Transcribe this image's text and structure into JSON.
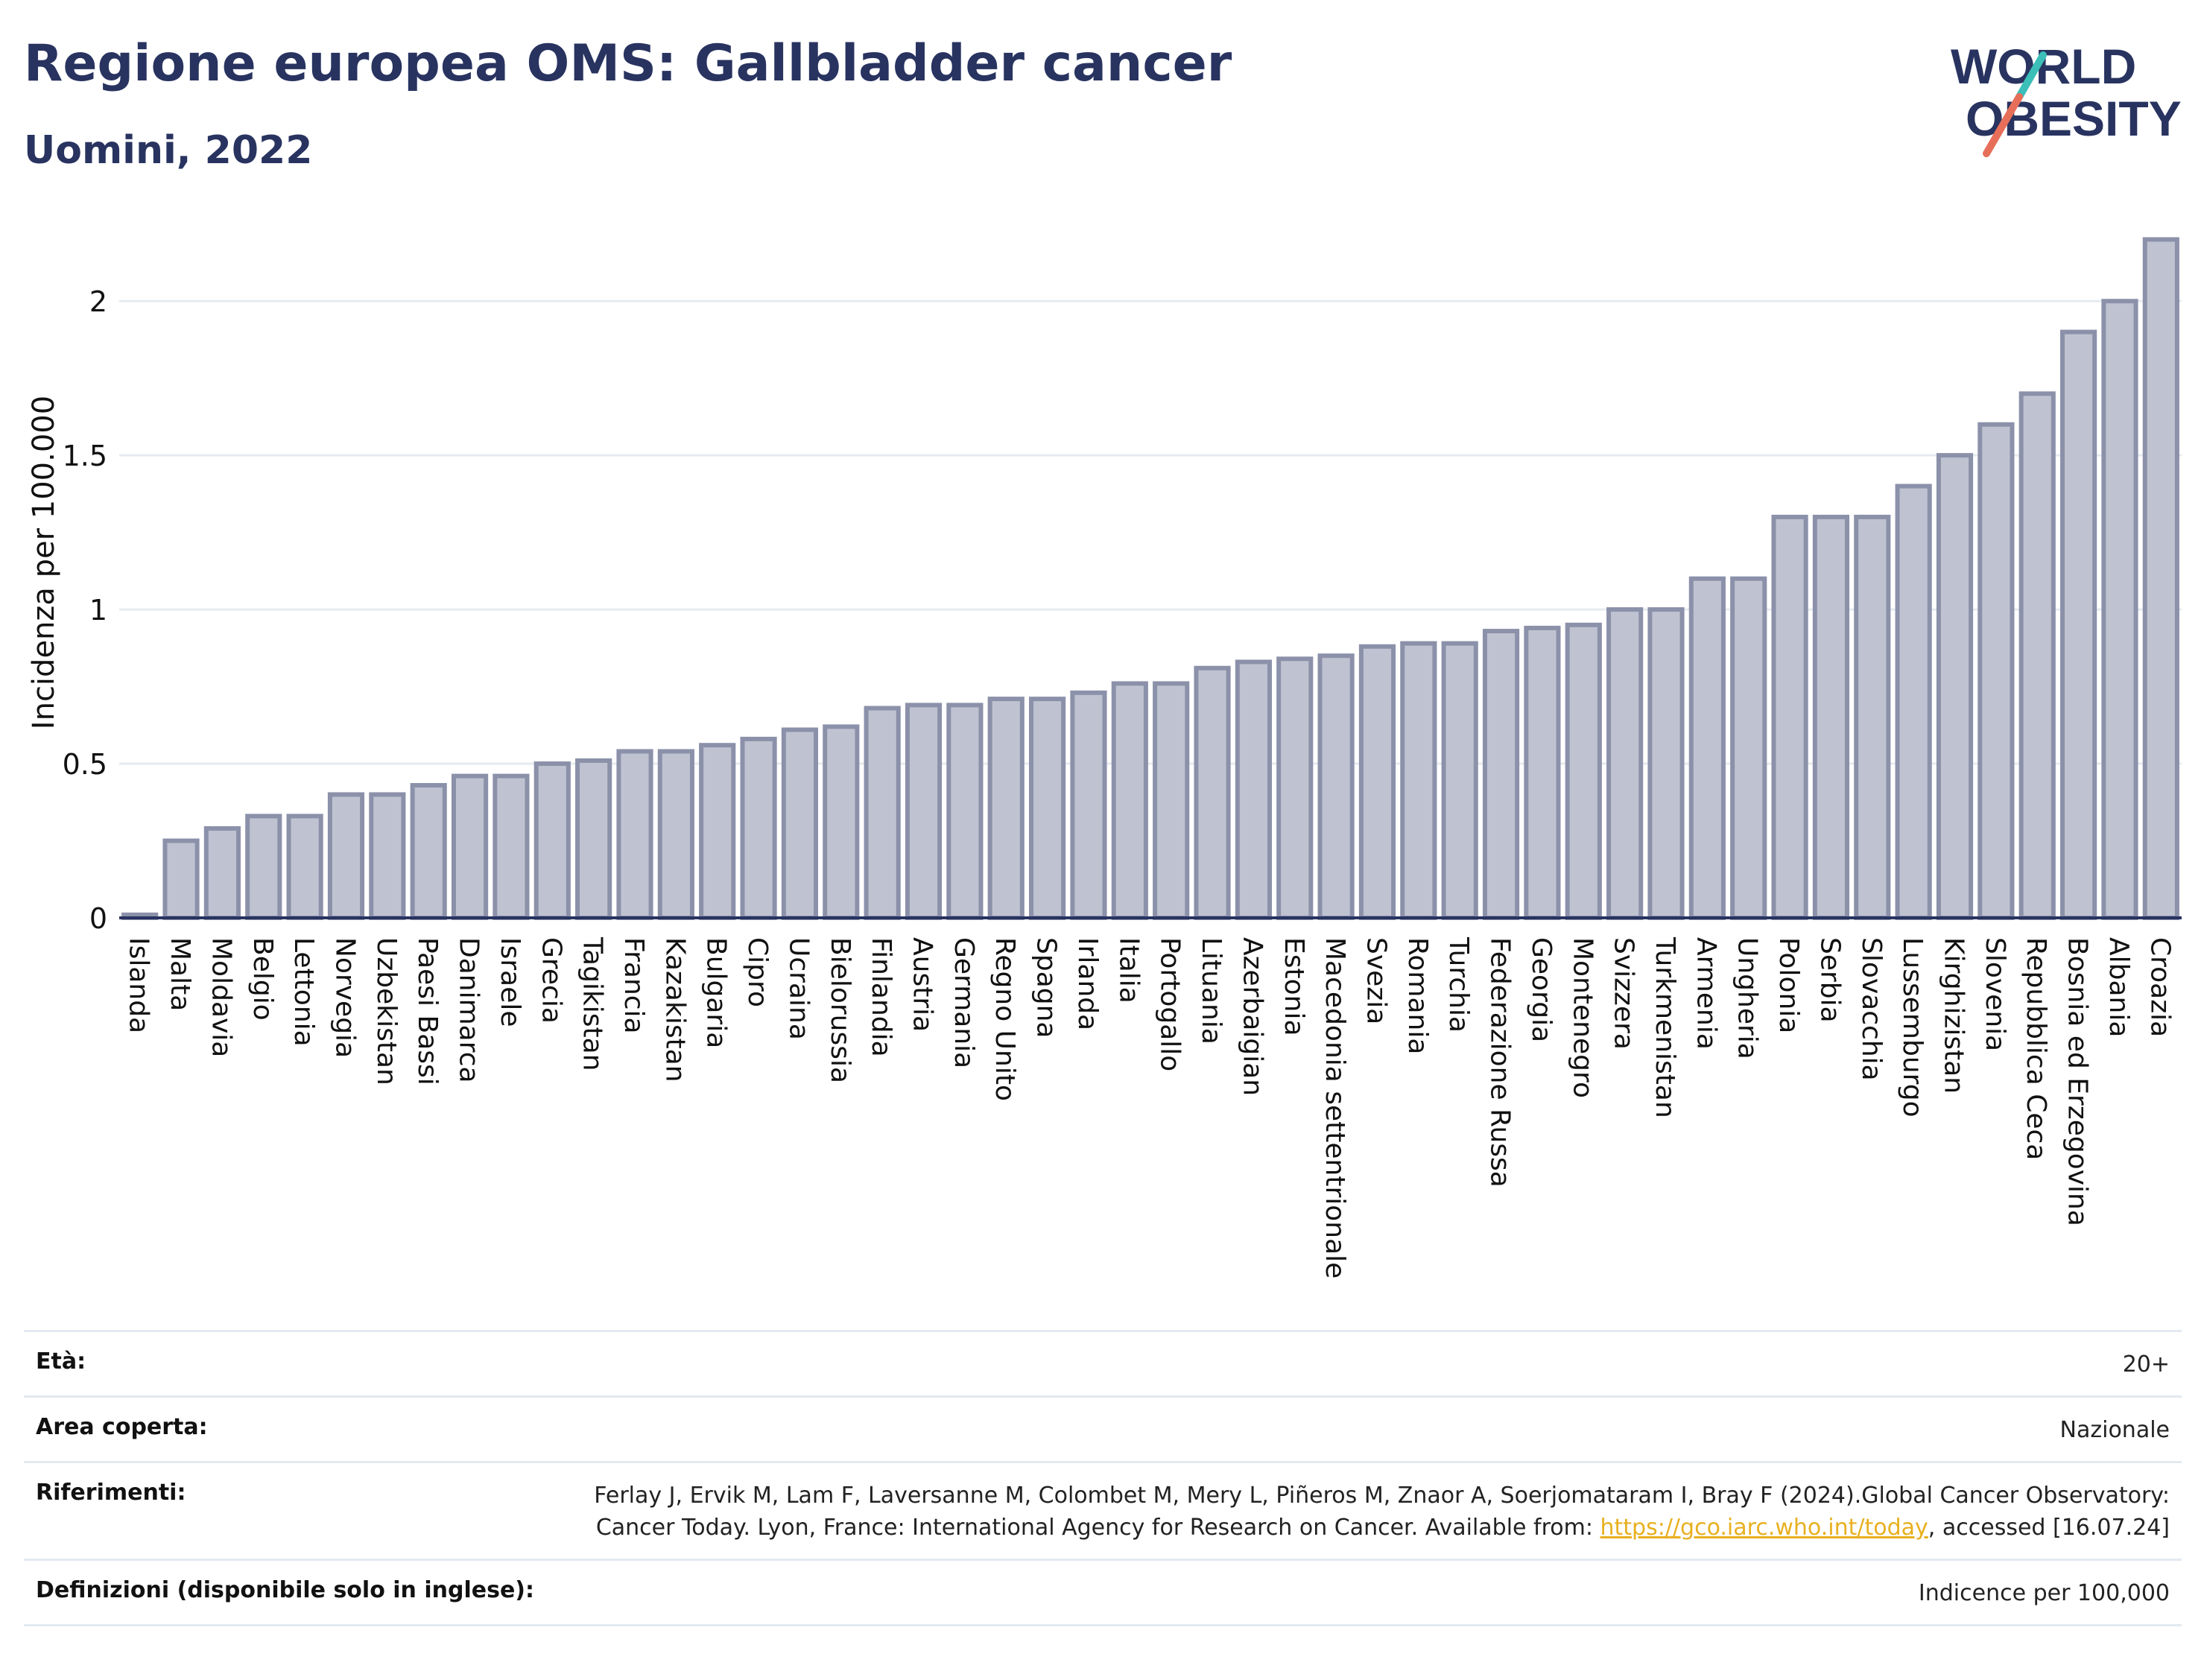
{
  "header": {
    "title": "Regione europea OMS: Gallbladder cancer",
    "subtitle": "Uomini, 2022"
  },
  "logo": {
    "line1": "WORLD",
    "line2": "OBESITY",
    "colors": {
      "text": "#283360",
      "slash_top": "#3bbfb8",
      "slash_bottom": "#e76f5a"
    }
  },
  "chart_data": {
    "type": "bar",
    "title": "Regione europea OMS: Gallbladder cancer",
    "subtitle": "Uomini, 2022",
    "xlabel": "",
    "ylabel": "Incidenza per 100.000",
    "ylim": [
      0,
      2.3
    ],
    "yticks": [
      0,
      0.5,
      1,
      1.5,
      2
    ],
    "ytick_labels": [
      "0",
      "0.5",
      "1",
      "1.5",
      "2"
    ],
    "grid": true,
    "bar_color": "#bfc3d1",
    "bar_border": "#8c91aa",
    "categories": [
      "Islanda",
      "Malta",
      "Moldavia",
      "Belgio",
      "Lettonia",
      "Norvegia",
      "Uzbekistan",
      "Paesi Bassi",
      "Danimarca",
      "Israele",
      "Grecia",
      "Tagikistan",
      "Francia",
      "Kazakistan",
      "Bulgaria",
      "Cipro",
      "Ucraina",
      "Bielorussia",
      "Finlandia",
      "Austria",
      "Germania",
      "Regno Unito",
      "Spagna",
      "Irlanda",
      "Italia",
      "Portogallo",
      "Lituania",
      "Azerbaigian",
      "Estonia",
      "Macedonia settentrionale",
      "Svezia",
      "Romania",
      "Turchia",
      "Federazione Russa",
      "Georgia",
      "Montenegro",
      "Svizzera",
      "Turkmenistan",
      "Armenia",
      "Ungheria",
      "Polonia",
      "Serbia",
      "Slovacchia",
      "Lussemburgo",
      "Kirghizistan",
      "Slovenia",
      "Repubblica Ceca",
      "Bosnia ed Erzegovina",
      "Albania",
      "Croazia"
    ],
    "values": [
      0.01,
      0.25,
      0.29,
      0.33,
      0.33,
      0.4,
      0.4,
      0.43,
      0.46,
      0.46,
      0.5,
      0.51,
      0.54,
      0.54,
      0.56,
      0.58,
      0.61,
      0.62,
      0.68,
      0.69,
      0.69,
      0.71,
      0.71,
      0.73,
      0.76,
      0.76,
      0.81,
      0.83,
      0.84,
      0.85,
      0.88,
      0.89,
      0.89,
      0.93,
      0.94,
      0.95,
      1.0,
      1.0,
      1.1,
      1.1,
      1.3,
      1.3,
      1.3,
      1.4,
      1.5,
      1.6,
      1.7,
      1.9,
      2.0,
      2.2
    ]
  },
  "meta": [
    {
      "label": "Età:",
      "value": "20+"
    },
    {
      "label": "Area coperta:",
      "value": "Nazionale"
    },
    {
      "label": "Riferimenti:",
      "value_pre": "Ferlay J, Ervik M, Lam F, Laversanne M, Colombet M, Mery L, Piñeros M, Znaor A, Soerjomataram I, Bray F (2024).Global Cancer Observatory: Cancer Today. Lyon, France: International Agency for Research on Cancer. Available from: ",
      "link": "https://gco.iarc.who.int/today",
      "value_post": ", accessed [16.07.24]"
    },
    {
      "label": "Definizioni (disponibile solo in inglese):",
      "value": "Indicence per 100,000"
    }
  ]
}
